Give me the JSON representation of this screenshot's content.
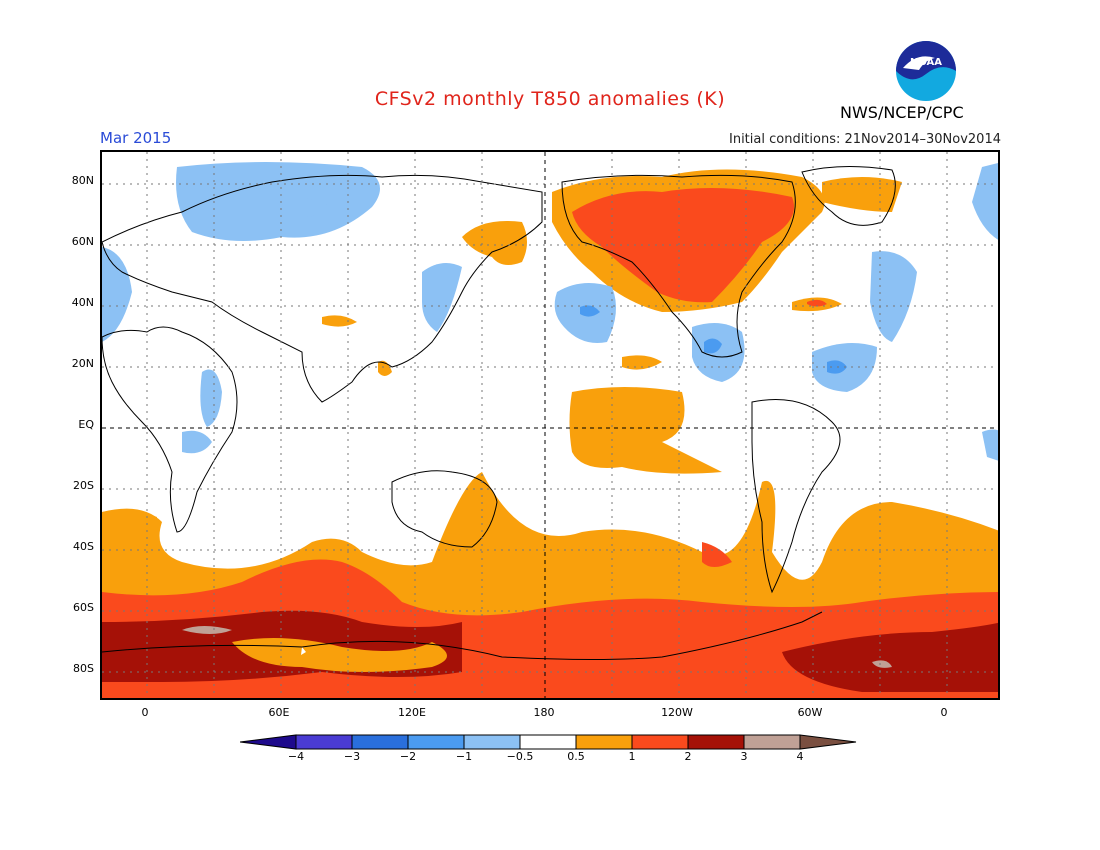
{
  "header": {
    "title": "CFSv2 monthly T850 anomalies (K)",
    "period": "Mar 2015",
    "initial_conditions": "Initial conditions: 21Nov2014–30Nov2014",
    "credit": "NWS/NCEP/CPC",
    "logo_text": "NOAA"
  },
  "axes": {
    "y_labels": [
      "80N",
      "60N",
      "40N",
      "20N",
      "EQ",
      "20S",
      "40S",
      "60S",
      "80S"
    ],
    "x_labels": [
      "0",
      "60E",
      "120E",
      "180",
      "120W",
      "60W",
      "0"
    ]
  },
  "legend": {
    "labels": [
      "−4",
      "−3",
      "−2",
      "−1",
      "−0.5",
      "0.5",
      "1",
      "2",
      "3",
      "4"
    ],
    "colors": [
      "#1e0a8c",
      "#4a3bd3",
      "#2a6fdc",
      "#4b9bf0",
      "#8cc1f4",
      "#ffffff",
      "#f9a00c",
      "#fa4a1d",
      "#a51107",
      "#c0a196",
      "#7a4f40"
    ]
  }
}
